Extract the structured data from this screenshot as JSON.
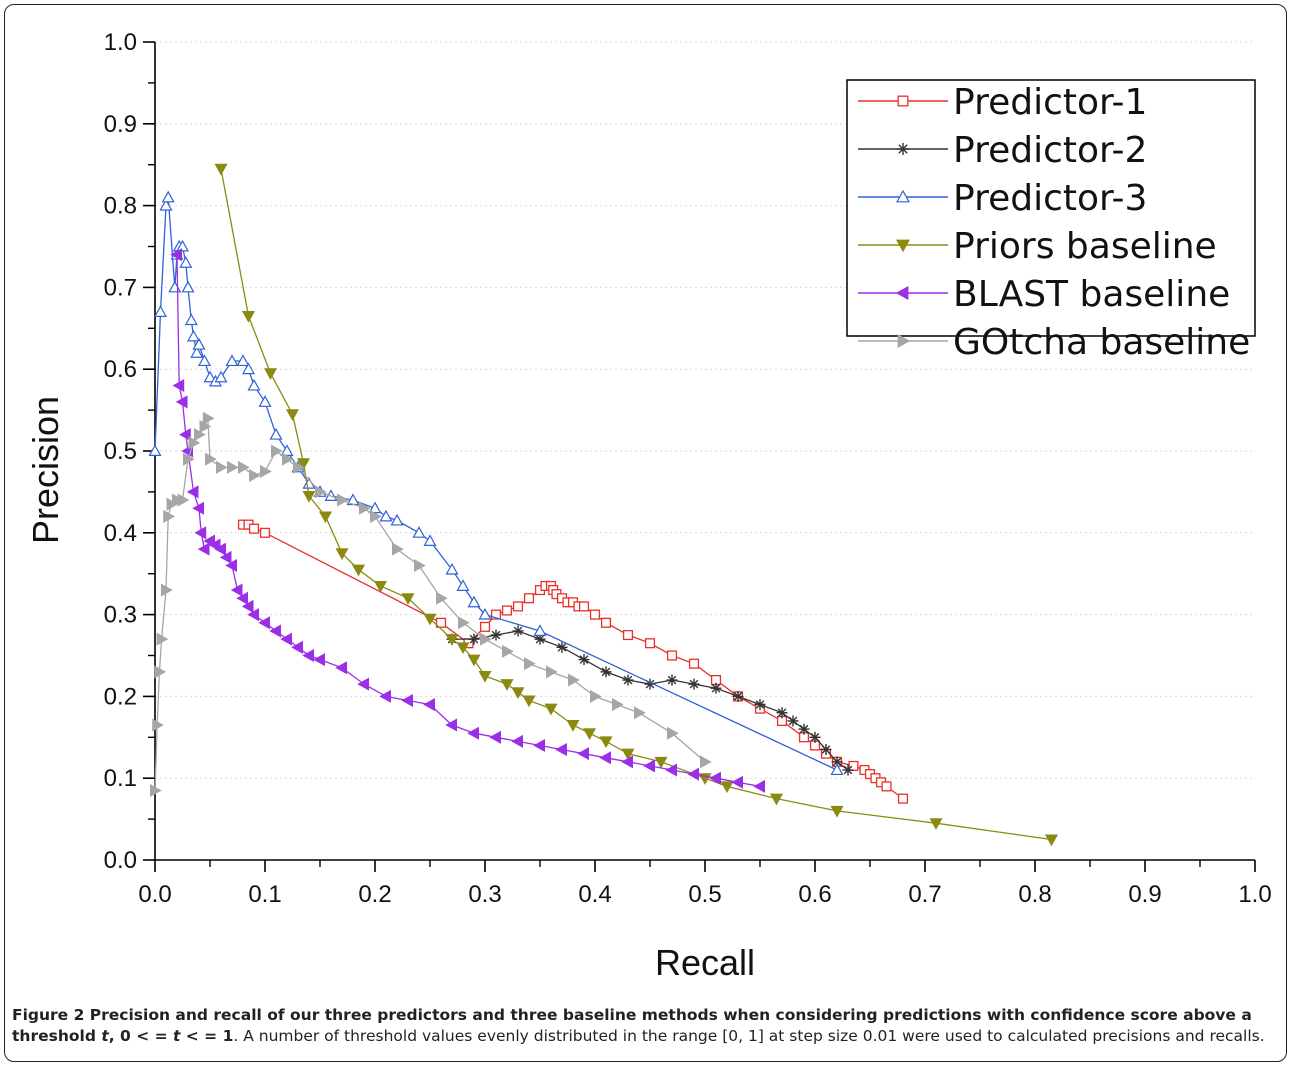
{
  "chart_data": {
    "type": "line",
    "xlabel": "Recall",
    "ylabel": "Precision",
    "xlim": [
      0,
      1.0
    ],
    "ylim": [
      0,
      1.0
    ],
    "x_ticks": [
      "0.0",
      "0.1",
      "0.2",
      "0.3",
      "0.4",
      "0.5",
      "0.6",
      "0.7",
      "0.8",
      "0.9",
      "1.0"
    ],
    "y_ticks": [
      "0.0",
      "0.1",
      "0.2",
      "0.3",
      "0.4",
      "0.5",
      "0.6",
      "0.7",
      "0.8",
      "0.9",
      "1.0"
    ],
    "grid": true,
    "legend_position": "top-right",
    "series": [
      {
        "name": "Predictor-1",
        "color": "#e8302a",
        "marker": "square",
        "points": [
          [
            0.08,
            0.41
          ],
          [
            0.085,
            0.41
          ],
          [
            0.09,
            0.405
          ],
          [
            0.1,
            0.4
          ],
          [
            0.26,
            0.29
          ],
          [
            0.285,
            0.265
          ],
          [
            0.3,
            0.285
          ],
          [
            0.31,
            0.3
          ],
          [
            0.32,
            0.305
          ],
          [
            0.33,
            0.31
          ],
          [
            0.34,
            0.32
          ],
          [
            0.35,
            0.33
          ],
          [
            0.355,
            0.335
          ],
          [
            0.36,
            0.335
          ],
          [
            0.362,
            0.33
          ],
          [
            0.365,
            0.325
          ],
          [
            0.37,
            0.32
          ],
          [
            0.375,
            0.315
          ],
          [
            0.38,
            0.315
          ],
          [
            0.385,
            0.31
          ],
          [
            0.39,
            0.31
          ],
          [
            0.4,
            0.3
          ],
          [
            0.41,
            0.29
          ],
          [
            0.43,
            0.275
          ],
          [
            0.45,
            0.265
          ],
          [
            0.47,
            0.25
          ],
          [
            0.49,
            0.24
          ],
          [
            0.51,
            0.22
          ],
          [
            0.53,
            0.2
          ],
          [
            0.55,
            0.185
          ],
          [
            0.57,
            0.17
          ],
          [
            0.59,
            0.15
          ],
          [
            0.6,
            0.14
          ],
          [
            0.61,
            0.13
          ],
          [
            0.62,
            0.12
          ],
          [
            0.635,
            0.115
          ],
          [
            0.645,
            0.11
          ],
          [
            0.65,
            0.105
          ],
          [
            0.655,
            0.1
          ],
          [
            0.66,
            0.095
          ],
          [
            0.665,
            0.09
          ],
          [
            0.68,
            0.075
          ]
        ]
      },
      {
        "name": "Predictor-2",
        "color": "#333333",
        "marker": "star",
        "points": [
          [
            0.27,
            0.27
          ],
          [
            0.29,
            0.27
          ],
          [
            0.31,
            0.275
          ],
          [
            0.33,
            0.28
          ],
          [
            0.35,
            0.27
          ],
          [
            0.37,
            0.26
          ],
          [
            0.39,
            0.245
          ],
          [
            0.41,
            0.23
          ],
          [
            0.43,
            0.22
          ],
          [
            0.45,
            0.215
          ],
          [
            0.47,
            0.22
          ],
          [
            0.49,
            0.215
          ],
          [
            0.51,
            0.21
          ],
          [
            0.53,
            0.2
          ],
          [
            0.55,
            0.19
          ],
          [
            0.57,
            0.18
          ],
          [
            0.58,
            0.17
          ],
          [
            0.59,
            0.16
          ],
          [
            0.6,
            0.15
          ],
          [
            0.61,
            0.135
          ],
          [
            0.62,
            0.12
          ],
          [
            0.63,
            0.11
          ]
        ]
      },
      {
        "name": "Predictor-3",
        "color": "#2f62d6",
        "marker": "triangle-up",
        "points": [
          [
            0.0,
            0.5
          ],
          [
            0.005,
            0.67
          ],
          [
            0.01,
            0.8
          ],
          [
            0.012,
            0.81
          ],
          [
            0.018,
            0.7
          ],
          [
            0.02,
            0.74
          ],
          [
            0.022,
            0.75
          ],
          [
            0.025,
            0.75
          ],
          [
            0.028,
            0.73
          ],
          [
            0.03,
            0.7
          ],
          [
            0.033,
            0.66
          ],
          [
            0.035,
            0.64
          ],
          [
            0.038,
            0.62
          ],
          [
            0.04,
            0.63
          ],
          [
            0.045,
            0.61
          ],
          [
            0.05,
            0.59
          ],
          [
            0.055,
            0.585
          ],
          [
            0.06,
            0.59
          ],
          [
            0.07,
            0.61
          ],
          [
            0.08,
            0.61
          ],
          [
            0.085,
            0.6
          ],
          [
            0.09,
            0.58
          ],
          [
            0.1,
            0.56
          ],
          [
            0.11,
            0.52
          ],
          [
            0.12,
            0.5
          ],
          [
            0.13,
            0.48
          ],
          [
            0.14,
            0.46
          ],
          [
            0.15,
            0.45
          ],
          [
            0.16,
            0.445
          ],
          [
            0.18,
            0.44
          ],
          [
            0.2,
            0.43
          ],
          [
            0.21,
            0.42
          ],
          [
            0.22,
            0.415
          ],
          [
            0.24,
            0.4
          ],
          [
            0.25,
            0.39
          ],
          [
            0.27,
            0.355
          ],
          [
            0.28,
            0.335
          ],
          [
            0.29,
            0.315
          ],
          [
            0.3,
            0.3
          ],
          [
            0.35,
            0.28
          ],
          [
            0.62,
            0.11
          ]
        ]
      },
      {
        "name": "Priors baseline",
        "color": "#8b8a10",
        "marker": "triangle-down",
        "points": [
          [
            0.06,
            0.845
          ],
          [
            0.085,
            0.665
          ],
          [
            0.105,
            0.595
          ],
          [
            0.125,
            0.545
          ],
          [
            0.135,
            0.485
          ],
          [
            0.14,
            0.445
          ],
          [
            0.155,
            0.42
          ],
          [
            0.17,
            0.375
          ],
          [
            0.185,
            0.355
          ],
          [
            0.205,
            0.335
          ],
          [
            0.23,
            0.32
          ],
          [
            0.25,
            0.295
          ],
          [
            0.27,
            0.27
          ],
          [
            0.28,
            0.26
          ],
          [
            0.29,
            0.245
          ],
          [
            0.3,
            0.225
          ],
          [
            0.32,
            0.215
          ],
          [
            0.33,
            0.205
          ],
          [
            0.34,
            0.195
          ],
          [
            0.36,
            0.185
          ],
          [
            0.38,
            0.165
          ],
          [
            0.395,
            0.155
          ],
          [
            0.41,
            0.145
          ],
          [
            0.43,
            0.13
          ],
          [
            0.46,
            0.12
          ],
          [
            0.5,
            0.1
          ],
          [
            0.52,
            0.09
          ],
          [
            0.565,
            0.075
          ],
          [
            0.62,
            0.06
          ],
          [
            0.71,
            0.045
          ],
          [
            0.815,
            0.025
          ]
        ]
      },
      {
        "name": "BLAST baseline",
        "color": "#9b2fe8",
        "marker": "triangle-left",
        "points": [
          [
            0.02,
            0.74
          ],
          [
            0.022,
            0.58
          ],
          [
            0.025,
            0.56
          ],
          [
            0.028,
            0.52
          ],
          [
            0.03,
            0.5
          ],
          [
            0.035,
            0.45
          ],
          [
            0.04,
            0.43
          ],
          [
            0.042,
            0.4
          ],
          [
            0.045,
            0.38
          ],
          [
            0.05,
            0.39
          ],
          [
            0.055,
            0.385
          ],
          [
            0.06,
            0.38
          ],
          [
            0.065,
            0.37
          ],
          [
            0.07,
            0.36
          ],
          [
            0.075,
            0.33
          ],
          [
            0.08,
            0.32
          ],
          [
            0.085,
            0.31
          ],
          [
            0.09,
            0.3
          ],
          [
            0.1,
            0.29
          ],
          [
            0.11,
            0.28
          ],
          [
            0.12,
            0.27
          ],
          [
            0.13,
            0.26
          ],
          [
            0.14,
            0.25
          ],
          [
            0.15,
            0.245
          ],
          [
            0.17,
            0.235
          ],
          [
            0.19,
            0.215
          ],
          [
            0.21,
            0.2
          ],
          [
            0.23,
            0.195
          ],
          [
            0.25,
            0.19
          ],
          [
            0.27,
            0.165
          ],
          [
            0.29,
            0.155
          ],
          [
            0.31,
            0.15
          ],
          [
            0.33,
            0.145
          ],
          [
            0.35,
            0.14
          ],
          [
            0.37,
            0.135
          ],
          [
            0.39,
            0.13
          ],
          [
            0.41,
            0.125
          ],
          [
            0.43,
            0.12
          ],
          [
            0.45,
            0.115
          ],
          [
            0.47,
            0.11
          ],
          [
            0.49,
            0.105
          ],
          [
            0.51,
            0.1
          ],
          [
            0.53,
            0.095
          ],
          [
            0.55,
            0.09
          ]
        ]
      },
      {
        "name": "GOtcha baseline",
        "color": "#a6a6a6",
        "marker": "triangle-right",
        "points": [
          [
            0.0,
            0.085
          ],
          [
            0.002,
            0.165
          ],
          [
            0.004,
            0.23
          ],
          [
            0.006,
            0.27
          ],
          [
            0.01,
            0.33
          ],
          [
            0.012,
            0.42
          ],
          [
            0.015,
            0.435
          ],
          [
            0.02,
            0.44
          ],
          [
            0.025,
            0.44
          ],
          [
            0.03,
            0.49
          ],
          [
            0.035,
            0.51
          ],
          [
            0.04,
            0.52
          ],
          [
            0.045,
            0.53
          ],
          [
            0.048,
            0.54
          ],
          [
            0.05,
            0.49
          ],
          [
            0.06,
            0.48
          ],
          [
            0.07,
            0.48
          ],
          [
            0.08,
            0.48
          ],
          [
            0.09,
            0.47
          ],
          [
            0.1,
            0.475
          ],
          [
            0.11,
            0.5
          ],
          [
            0.12,
            0.49
          ],
          [
            0.13,
            0.48
          ],
          [
            0.15,
            0.45
          ],
          [
            0.17,
            0.44
          ],
          [
            0.19,
            0.43
          ],
          [
            0.2,
            0.42
          ],
          [
            0.22,
            0.38
          ],
          [
            0.24,
            0.36
          ],
          [
            0.26,
            0.32
          ],
          [
            0.28,
            0.29
          ],
          [
            0.3,
            0.27
          ],
          [
            0.32,
            0.255
          ],
          [
            0.34,
            0.24
          ],
          [
            0.36,
            0.23
          ],
          [
            0.38,
            0.22
          ],
          [
            0.4,
            0.2
          ],
          [
            0.42,
            0.19
          ],
          [
            0.44,
            0.18
          ],
          [
            0.47,
            0.155
          ],
          [
            0.5,
            0.12
          ]
        ]
      }
    ]
  },
  "caption": {
    "figure_label": "Figure 2",
    "bold_1": " Precision and recall of our three predictors and three baseline methods when considering predictions with confidence score above a threshold ",
    "italic_t": "t",
    "bold_2": ", 0 < = ",
    "italic_t2": "t",
    "bold_3": " < = 1",
    "rest": ". A number of threshold values evenly distributed in the range [0, 1] at step size 0.01 were used to calculated precisions and recalls."
  }
}
